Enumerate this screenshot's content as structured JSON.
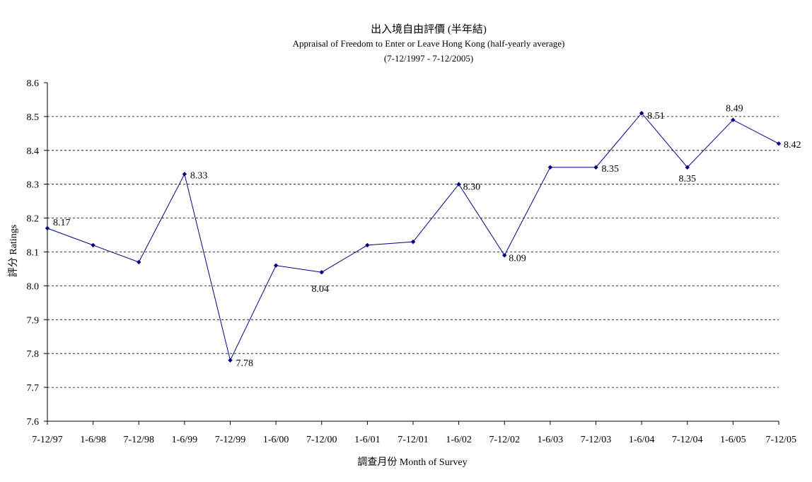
{
  "chart_data": {
    "type": "line",
    "title": "出入境自由評價 (半年結)",
    "subtitle_1": "Appraisal of Freedom to Enter or Leave Hong Kong (half-yearly average)",
    "subtitle_2": "(7-12/1997 - 7-12/2005)",
    "xlabel": "調查月份 Month of Survey",
    "ylabel": "評分 Ratings",
    "ylim": [
      7.6,
      8.6
    ],
    "yticks": [
      "8.6",
      "8.5",
      "8.4",
      "8.3",
      "8.2",
      "8.1",
      "8.0",
      "7.9",
      "7.8",
      "7.7",
      "7.6"
    ],
    "grid": "horizontal dashed",
    "legend": "none",
    "categories": [
      "7-12/97",
      "1-6/98",
      "7-12/98",
      "1-6/99",
      "7-12/99",
      "1-6/00",
      "7-12/00",
      "1-6/01",
      "7-12/01",
      "1-6/02",
      "7-12/02",
      "1-6/03",
      "7-12/03",
      "1-6/04",
      "7-12/04",
      "1-6/05",
      "7-12/05"
    ],
    "series": [
      {
        "values": [
          8.17,
          8.12,
          8.07,
          8.33,
          7.78,
          8.06,
          8.04,
          8.12,
          8.13,
          8.3,
          8.09,
          8.35,
          8.35,
          8.51,
          8.35,
          8.49,
          8.42
        ],
        "color": "#000080"
      }
    ],
    "data_labels": [
      {
        "index": 0,
        "text": "8.17"
      },
      {
        "index": 3,
        "text": "8.33"
      },
      {
        "index": 4,
        "text": "7.78"
      },
      {
        "index": 6,
        "text": "8.04"
      },
      {
        "index": 9,
        "text": "8.30"
      },
      {
        "index": 10,
        "text": "8.09"
      },
      {
        "index": 12,
        "text": "8.35"
      },
      {
        "index": 13,
        "text": "8.51"
      },
      {
        "index": 14,
        "text": "8.35"
      },
      {
        "index": 15,
        "text": "8.49"
      },
      {
        "index": 16,
        "text": "8.42"
      }
    ]
  }
}
